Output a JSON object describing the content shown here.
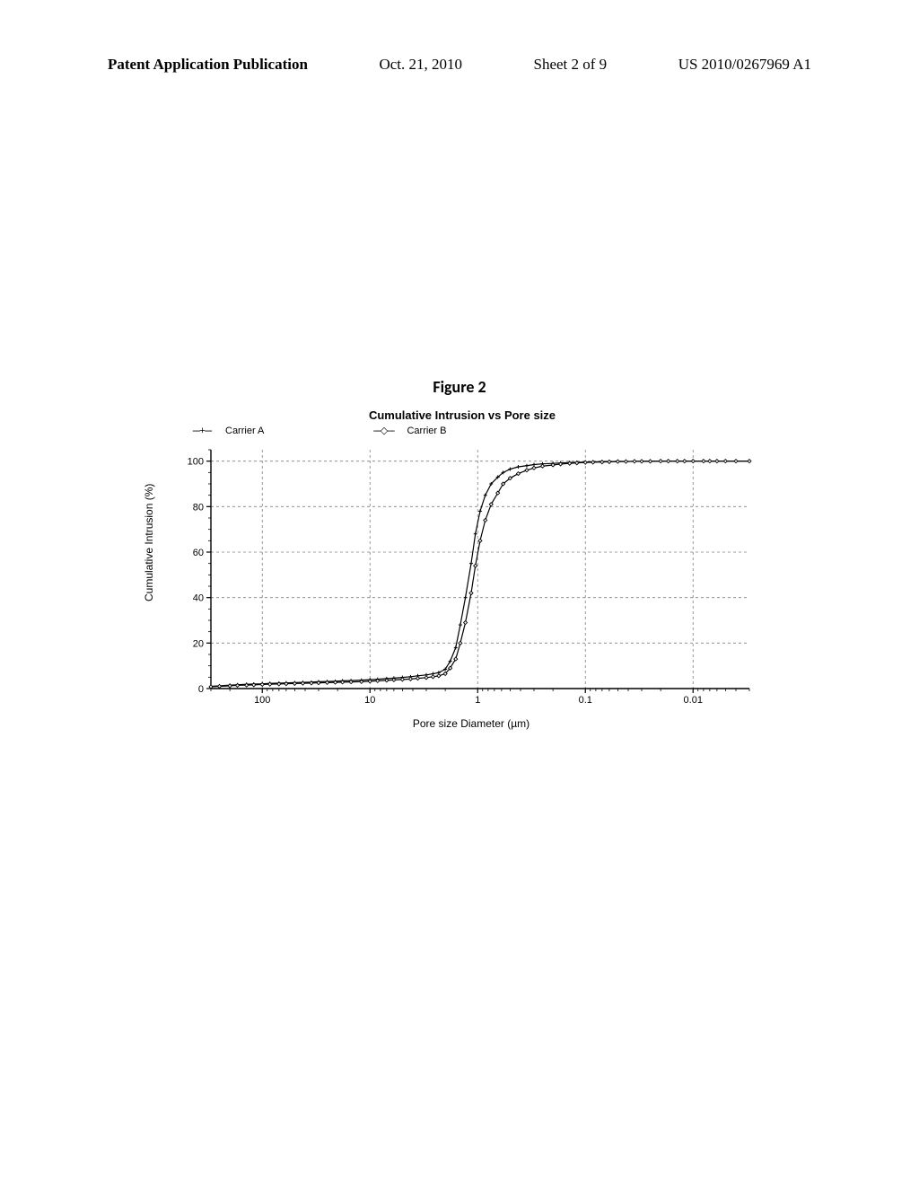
{
  "header": {
    "pub": "Patent Application Publication",
    "date": "Oct. 21, 2010",
    "sheet": "Sheet 2 of 9",
    "docnum": "US 2010/0267969 A1"
  },
  "figure_caption": "Figure 2",
  "chart": {
    "type": "line",
    "title": "Cumulative Intrusion vs Pore size",
    "xlabel": "Pore size Diameter (µm)",
    "ylabel": "Cumulative Intrusion (%)",
    "x_scale": "log",
    "x_reversed": true,
    "xlim": [
      300,
      0.003
    ],
    "x_major_ticks": [
      100,
      10,
      1,
      0.1,
      0.01
    ],
    "x_tick_labels": [
      "100",
      "10",
      "1",
      "0.1",
      "0.01"
    ],
    "ylim": [
      0,
      105
    ],
    "y_major_ticks": [
      0,
      20,
      40,
      60,
      80,
      100
    ],
    "y_tick_labels": [
      "0",
      "20",
      "40",
      "60",
      "80",
      "100"
    ],
    "grid_color": "#808080",
    "grid_dash": "3,3",
    "axis_color": "#000000",
    "background_color": "#ffffff",
    "line_color": "#000000",
    "line_width": 1.2,
    "marker_size": 4,
    "series": [
      {
        "name": "Carrier A",
        "marker": "plus",
        "label": "Carrier A",
        "legend_swatch": "---+---",
        "x": [
          300,
          250,
          200,
          170,
          140,
          120,
          100,
          85,
          70,
          60,
          50,
          42,
          35,
          30,
          25,
          21,
          18,
          15,
          12,
          10,
          8.5,
          7,
          6,
          5,
          4.2,
          3.6,
          3,
          2.6,
          2.3,
          2,
          1.8,
          1.6,
          1.45,
          1.3,
          1.15,
          1.05,
          0.95,
          0.85,
          0.75,
          0.65,
          0.58,
          0.5,
          0.42,
          0.35,
          0.3,
          0.25,
          0.2,
          0.17,
          0.14,
          0.12,
          0.1,
          0.085,
          0.07,
          0.06,
          0.05,
          0.042,
          0.035,
          0.03,
          0.025,
          0.02,
          0.017,
          0.014,
          0.012,
          0.01,
          0.008,
          0.007,
          0.006,
          0.005,
          0.004,
          0.003
        ],
        "y": [
          1,
          1.2,
          1.5,
          1.7,
          1.9,
          2,
          2.1,
          2.3,
          2.4,
          2.5,
          2.6,
          2.7,
          2.8,
          3,
          3.1,
          3.2,
          3.4,
          3.5,
          3.7,
          3.9,
          4.1,
          4.4,
          4.6,
          4.9,
          5.2,
          5.6,
          6,
          6.5,
          7,
          8.5,
          12,
          18,
          28,
          40,
          55,
          68,
          78,
          85,
          90,
          93,
          95,
          96.5,
          97.5,
          98,
          98.5,
          98.8,
          99,
          99.2,
          99.4,
          99.5,
          99.6,
          99.7,
          99.8,
          99.8,
          99.9,
          99.9,
          99.9,
          100,
          100,
          100,
          100,
          100,
          100,
          100,
          100,
          100,
          100,
          100,
          100,
          100
        ]
      },
      {
        "name": "Carrier B",
        "marker": "diamond",
        "label": "Carrier B",
        "legend_swatch": "---◇---",
        "x": [
          300,
          250,
          200,
          170,
          140,
          120,
          100,
          85,
          70,
          60,
          50,
          42,
          35,
          30,
          25,
          21,
          18,
          15,
          12,
          10,
          8.5,
          7,
          6,
          5,
          4.2,
          3.6,
          3,
          2.6,
          2.3,
          2,
          1.8,
          1.6,
          1.45,
          1.3,
          1.15,
          1.05,
          0.95,
          0.85,
          0.75,
          0.65,
          0.58,
          0.5,
          0.42,
          0.35,
          0.3,
          0.25,
          0.2,
          0.17,
          0.14,
          0.12,
          0.1,
          0.085,
          0.07,
          0.06,
          0.05,
          0.042,
          0.035,
          0.03,
          0.025,
          0.02,
          0.017,
          0.014,
          0.012,
          0.01,
          0.008,
          0.007,
          0.006,
          0.005,
          0.004,
          0.003
        ],
        "y": [
          0.8,
          1,
          1.2,
          1.4,
          1.5,
          1.6,
          1.8,
          1.9,
          2,
          2.1,
          2.2,
          2.3,
          2.4,
          2.5,
          2.6,
          2.7,
          2.8,
          2.9,
          3,
          3.2,
          3.4,
          3.6,
          3.8,
          4,
          4.2,
          4.5,
          4.8,
          5.2,
          5.6,
          6.5,
          9,
          13,
          20,
          29,
          42,
          54,
          65,
          74,
          81,
          86,
          90,
          92.5,
          94.5,
          96,
          97,
          97.8,
          98.3,
          98.7,
          99,
          99.2,
          99.4,
          99.5,
          99.6,
          99.7,
          99.8,
          99.8,
          99.9,
          99.9,
          99.9,
          100,
          100,
          100,
          100,
          100,
          100,
          100,
          100,
          100,
          100,
          100
        ]
      }
    ]
  }
}
